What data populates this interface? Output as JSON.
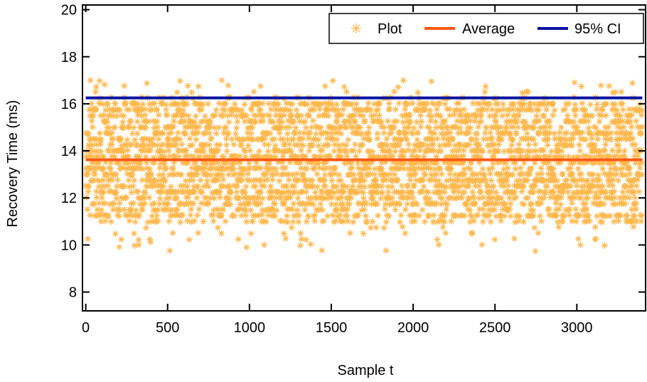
{
  "chart_data": {
    "type": "scatter",
    "xlabel": "Sample t",
    "ylabel": "Recovery Time (ms)",
    "xlim": [
      -20,
      3420
    ],
    "ylim": [
      7.2,
      20.2
    ],
    "x_ticks": [
      0,
      500,
      1000,
      1500,
      2000,
      2500,
      3000
    ],
    "y_ticks": [
      8,
      10,
      12,
      14,
      16,
      18,
      20
    ],
    "x_tick_labels": [
      "0",
      "500",
      "1000",
      "1500",
      "2000",
      "2500",
      "3000"
    ],
    "y_tick_labels": [
      "8",
      "10",
      "12",
      "14",
      "16",
      "18",
      "20"
    ],
    "grid": false,
    "legend_position": "top-right",
    "series": [
      {
        "name": "Plot",
        "kind": "scatter",
        "marker": "asterisk",
        "color": "#FFB84D",
        "n_points": 3400,
        "x_range": [
          0,
          3400
        ],
        "value_range": [
          9.7,
          17.0
        ]
      },
      {
        "name": "Average",
        "kind": "line",
        "color": "#FF5A14",
        "x": [
          0,
          3400
        ],
        "y": [
          13.62,
          13.62
        ]
      },
      {
        "name": "95% CI",
        "kind": "line",
        "color": "#0A14A0",
        "x": [
          0,
          3400
        ],
        "y": [
          16.25,
          16.25
        ]
      }
    ]
  }
}
